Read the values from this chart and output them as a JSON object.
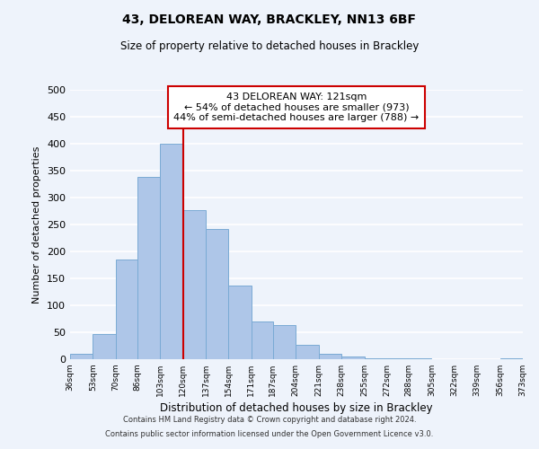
{
  "title": "43, DELOREAN WAY, BRACKLEY, NN13 6BF",
  "subtitle": "Size of property relative to detached houses in Brackley",
  "xlabel": "Distribution of detached houses by size in Brackley",
  "ylabel": "Number of detached properties",
  "footnote1": "Contains HM Land Registry data © Crown copyright and database right 2024.",
  "footnote2": "Contains public sector information licensed under the Open Government Licence v3.0.",
  "bar_edges": [
    36,
    53,
    70,
    86,
    103,
    120,
    137,
    154,
    171,
    187,
    204,
    221,
    238,
    255,
    272,
    288,
    305,
    322,
    339,
    356,
    373
  ],
  "bar_heights": [
    10,
    46,
    185,
    338,
    400,
    277,
    242,
    137,
    70,
    63,
    26,
    10,
    5,
    2,
    1,
    1,
    0,
    0,
    0,
    2
  ],
  "bar_color": "#aec6e8",
  "bar_edgecolor": "#7aaad4",
  "vline_x": 120,
  "vline_color": "#cc0000",
  "ylim": [
    0,
    500
  ],
  "annotation_line1": "43 DELOREAN WAY: 121sqm",
  "annotation_line2": "← 54% of detached houses are smaller (973)",
  "annotation_line3": "44% of semi-detached houses are larger (788) →",
  "annotation_box_color": "white",
  "annotation_box_edgecolor": "#cc0000",
  "tick_labels": [
    "36sqm",
    "53sqm",
    "70sqm",
    "86sqm",
    "103sqm",
    "120sqm",
    "137sqm",
    "154sqm",
    "171sqm",
    "187sqm",
    "204sqm",
    "221sqm",
    "238sqm",
    "255sqm",
    "272sqm",
    "288sqm",
    "305sqm",
    "322sqm",
    "339sqm",
    "356sqm",
    "373sqm"
  ],
  "yticks": [
    0,
    50,
    100,
    150,
    200,
    250,
    300,
    350,
    400,
    450,
    500
  ],
  "background_color": "#eef3fb",
  "grid_color": "white"
}
